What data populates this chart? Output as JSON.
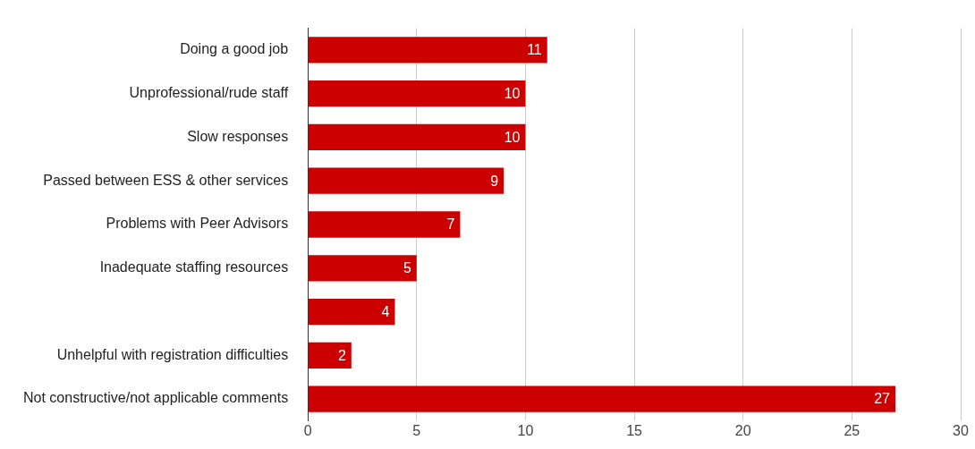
{
  "chart_data": {
    "type": "bar",
    "orientation": "horizontal",
    "categories": [
      "Doing a good job",
      "Unprofessional/rude staff",
      "Slow responses",
      "Passed between ESS & other services",
      "Problems with Peer Advisors",
      "Inadequate staffing resources",
      null,
      "Unhelpful with registration difficulties",
      "Not constructive/not applicable comments"
    ],
    "values": [
      11,
      10,
      10,
      9,
      7,
      5,
      4,
      2,
      27
    ],
    "color": "#cc0000",
    "xlim": [
      0,
      30
    ],
    "xticks": [
      0,
      5,
      10,
      15,
      20,
      25,
      30
    ],
    "grid": "x",
    "data_labels": true
  }
}
